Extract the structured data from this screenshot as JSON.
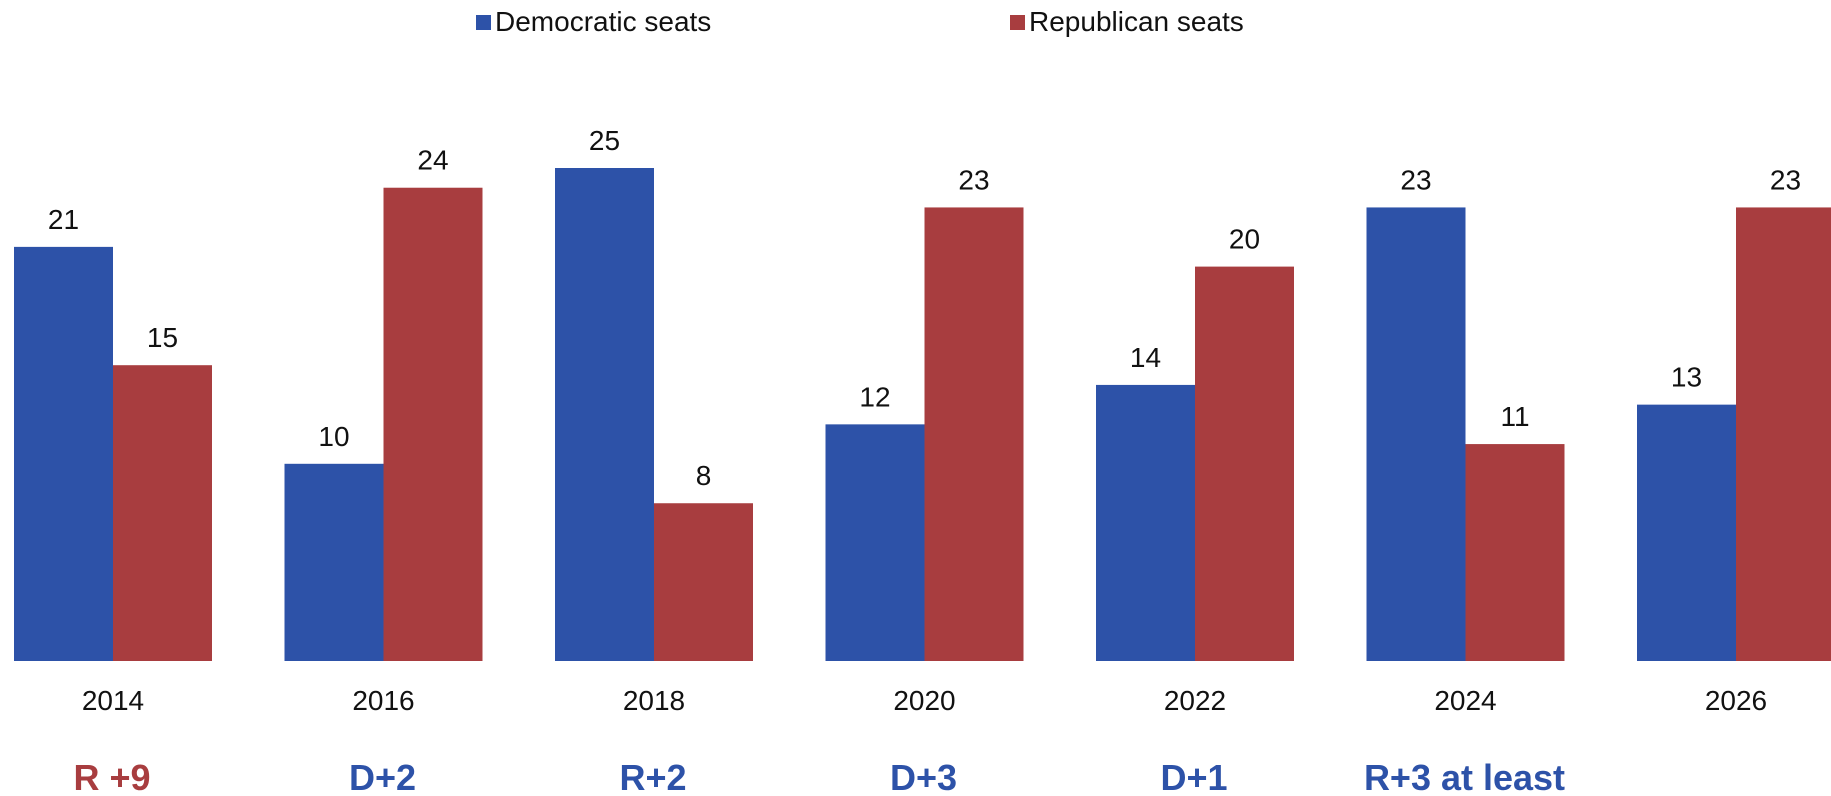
{
  "chart_data": {
    "type": "bar",
    "categories": [
      "2014",
      "2016",
      "2018",
      "2020",
      "2022",
      "2024",
      "2026"
    ],
    "series": [
      {
        "name": "Democratic seats",
        "color": "#2d52a8",
        "values": [
          21,
          10,
          25,
          12,
          14,
          23,
          13
        ]
      },
      {
        "name": "Republican seats",
        "color": "#a83d3f",
        "values": [
          15,
          24,
          8,
          23,
          20,
          11,
          23
        ]
      }
    ],
    "ylim": [
      0,
      25
    ],
    "grid": false,
    "legend_position": "top-center",
    "net_change_labels": [
      {
        "text": "R +9",
        "color": "#a83d3f"
      },
      {
        "text": "D+2",
        "color": "#2d52a8"
      },
      {
        "text": "R+2",
        "color": "#2d52a8"
      },
      {
        "text": "D+3",
        "color": "#2d52a8"
      },
      {
        "text": "D+1",
        "color": "#2d52a8"
      },
      {
        "text": "R+3 at least",
        "color": "#2d52a8"
      },
      {
        "text": "",
        "color": "#2d52a8"
      }
    ]
  }
}
